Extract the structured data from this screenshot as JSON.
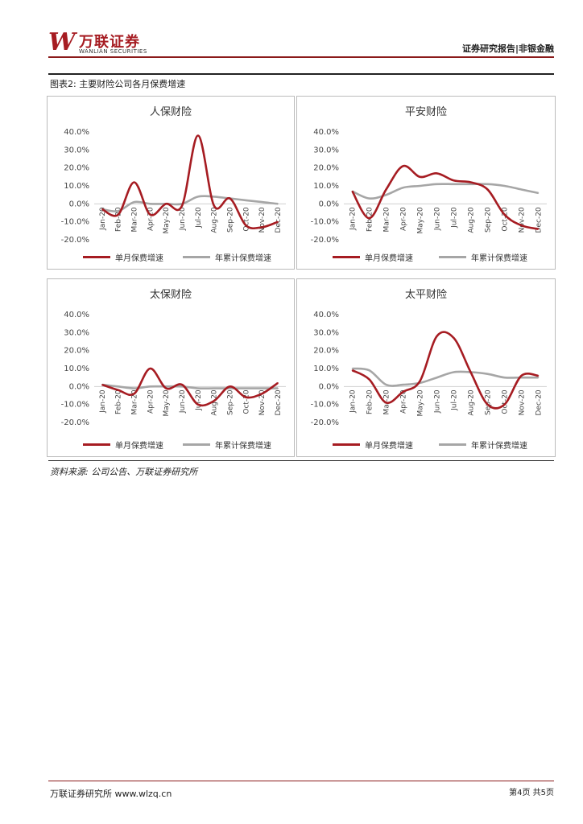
{
  "header": {
    "logo_mark": "W",
    "logo_cn": "万联证券",
    "logo_en": "WANLIAN SECURITIES",
    "right_text": "证券研究报告|非银金融"
  },
  "figure": {
    "title": "图表2: 主要财险公司各月保费增速",
    "source": "资料来源: 公司公告、万联证券研究所"
  },
  "footer": {
    "left": "万联证券研究所 www.wlzq.cn",
    "right": "第4页 共5页"
  },
  "colors": {
    "single": "#a61c22",
    "cumulative": "#a6a6a6"
  },
  "chart_data": [
    {
      "type": "line",
      "title": "人保财险",
      "categories": [
        "Jan-20",
        "Feb-20",
        "Mar-20",
        "Apr-20",
        "May-20",
        "Jun-20",
        "Jul-20",
        "Aug-20",
        "Sep-20",
        "Oct-20",
        "Nov-20",
        "Dec-20"
      ],
      "ylim": [
        -20,
        40
      ],
      "yticks": [
        "-20.0%",
        "-10.0%",
        "0.0%",
        "10.0%",
        "20.0%",
        "30.0%",
        "40.0%"
      ],
      "series": [
        {
          "name": "单月保费增速",
          "values": [
            -3,
            -6,
            12,
            -6,
            0,
            -1,
            38,
            -1,
            3,
            -12,
            -13,
            -10
          ]
        },
        {
          "name": "年累计保费增速",
          "values": [
            -3,
            -4,
            1,
            0,
            0,
            0,
            4,
            4,
            3,
            2,
            1,
            0
          ]
        }
      ]
    },
    {
      "type": "line",
      "title": "平安财险",
      "categories": [
        "Jan-20",
        "Feb-20",
        "Mar-20",
        "Apr-20",
        "May-20",
        "Jun-20",
        "Jul-20",
        "Aug-20",
        "Sep-20",
        "Oct-20",
        "Nov-20",
        "Dec-20"
      ],
      "ylim": [
        -20,
        40
      ],
      "yticks": [
        "-20.0%",
        "-10.0%",
        "0.0%",
        "10.0%",
        "20.0%",
        "30.0%",
        "40.0%"
      ],
      "series": [
        {
          "name": "单月保费增速",
          "values": [
            7,
            -8,
            8,
            21,
            15,
            17,
            13,
            12,
            8,
            -6,
            -12,
            -14
          ]
        },
        {
          "name": "年累计保费增速",
          "values": [
            7,
            3,
            5,
            9,
            10,
            11,
            11,
            11,
            11,
            10,
            8,
            6
          ]
        }
      ]
    },
    {
      "type": "line",
      "title": "太保财险",
      "categories": [
        "Jan-20",
        "Feb-20",
        "Mar-20",
        "Apr-20",
        "May-20",
        "Jun-20",
        "Jul-20",
        "Aug-20",
        "Sep-20",
        "Oct-20",
        "Nov-20",
        "Dec-20"
      ],
      "ylim": [
        -20,
        40
      ],
      "yticks": [
        "-20.0%",
        "-10.0%",
        "0.0%",
        "10.0%",
        "20.0%",
        "30.0%",
        "40.0%"
      ],
      "series": [
        {
          "name": "单月保费增速",
          "values": [
            1,
            -2,
            -4,
            10,
            -1,
            1,
            -10,
            -8,
            0,
            -6,
            -4,
            2
          ]
        },
        {
          "name": "年累计保费增速",
          "values": [
            1,
            0,
            -1,
            0,
            0,
            0,
            -1,
            -1,
            -1,
            -1,
            -1,
            -1
          ]
        }
      ]
    },
    {
      "type": "line",
      "title": "太平财险",
      "categories": [
        "Jan-20",
        "Feb-20",
        "Mar-20",
        "Apr-20",
        "May-20",
        "Jun-20",
        "Jul-20",
        "Aug-20",
        "Sep-20",
        "Oct-20",
        "Nov-20",
        "Dec-20"
      ],
      "ylim": [
        -20,
        40
      ],
      "yticks": [
        "-20.0%",
        "-10.0%",
        "0.0%",
        "10.0%",
        "20.0%",
        "30.0%",
        "40.0%"
      ],
      "series": [
        {
          "name": "单月保费增速",
          "values": [
            9,
            4,
            -9,
            -3,
            3,
            28,
            27,
            8,
            -10,
            -10,
            6,
            6
          ]
        },
        {
          "name": "年累计保费增速",
          "values": [
            10,
            9,
            1,
            1,
            2,
            5,
            8,
            8,
            7,
            5,
            5,
            5
          ]
        }
      ]
    }
  ]
}
